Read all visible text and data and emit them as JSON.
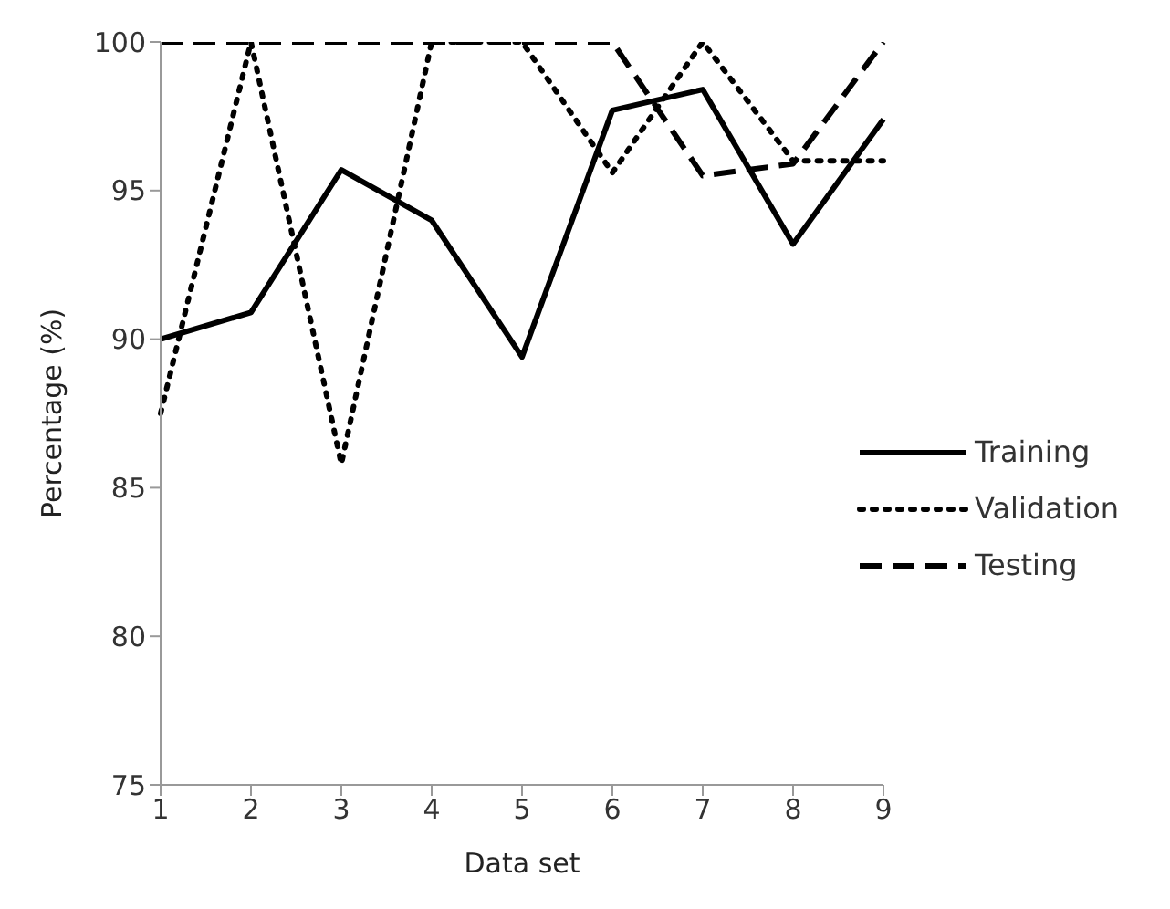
{
  "chart_data": {
    "type": "line",
    "xlabel": "Data set",
    "ylabel": "Percentage (%)",
    "categories": [
      "1",
      "2",
      "3",
      "4",
      "5",
      "6",
      "7",
      "8",
      "9"
    ],
    "series": [
      {
        "name": "Training",
        "color": "#000000",
        "line_style": "solid",
        "values": [
          90.0,
          90.9,
          95.7,
          94.0,
          89.4,
          97.7,
          98.4,
          93.2,
          97.4
        ]
      },
      {
        "name": "Validation",
        "color": "#000000",
        "line_style": "dotted",
        "values": [
          87.5,
          100,
          85.8,
          100,
          100,
          95.6,
          100,
          96.0,
          96.0
        ]
      },
      {
        "name": "Testing",
        "color": "#000000",
        "line_style": "dashed",
        "values": [
          100,
          100,
          100,
          100,
          100,
          100,
          95.5,
          95.9,
          100
        ]
      }
    ],
    "ylim": [
      75,
      100
    ],
    "yticks": [
      75,
      80,
      85,
      90,
      95,
      100
    ],
    "grid": false,
    "legend": "right",
    "marker": "none"
  }
}
